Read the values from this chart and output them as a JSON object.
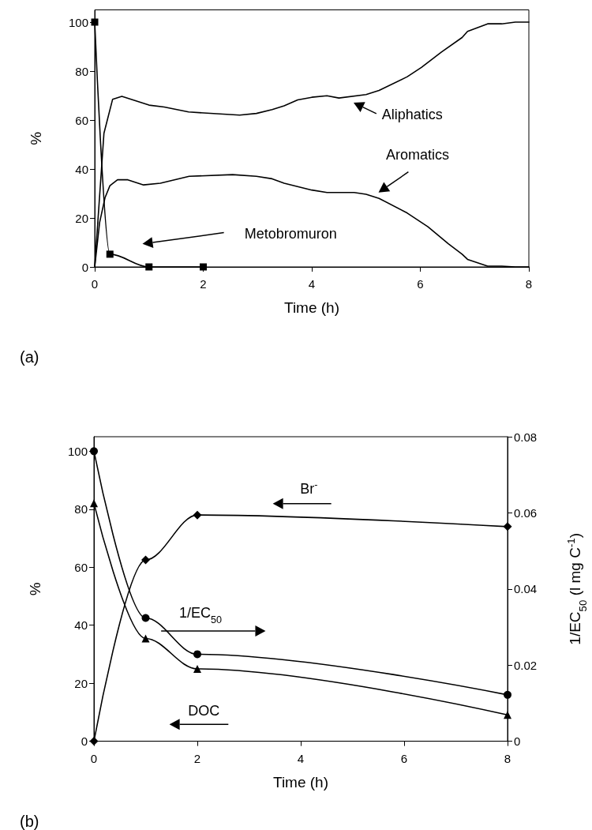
{
  "chart_data": [
    {
      "type": "line",
      "title": "(a)",
      "xlabel": "Time (h)",
      "ylabel": "%",
      "xlim": [
        0,
        8
      ],
      "xticks": [
        0,
        2,
        4,
        6,
        8
      ],
      "ylim": [
        0,
        105
      ],
      "yticks": [
        0,
        20,
        40,
        60,
        80,
        100
      ],
      "grid": false,
      "line_style": "solid",
      "annotations": [
        "Aliphatics",
        "Aromatics",
        "Metobromuron"
      ],
      "series": [
        {
          "color": "#000000",
          "marker": "none",
          "x": [
            0,
            0.17,
            0.33,
            0.5,
            1,
            1.28,
            1.73,
            2.67,
            2.98,
            3.27,
            3.49,
            3.74,
            4.0,
            4.28,
            4.5,
            5.0,
            5.24,
            5.76,
            6.02,
            6.39,
            6.77,
            6.87,
            7.24,
            7.5,
            7.75,
            8
          ],
          "values": [
            0,
            54.6,
            68.5,
            69.7,
            66.1,
            65.3,
            63.3,
            62.0,
            62.7,
            64.3,
            65.8,
            68.2,
            69.3,
            69.9,
            69.0,
            70.4,
            72.1,
            77.7,
            81.5,
            87.8,
            93.7,
            96.2,
            99.3,
            99.3,
            100,
            100
          ]
        },
        {
          "color": "#000000",
          "marker": "none",
          "x": [
            0,
            0.09,
            0.19,
            0.28,
            0.42,
            0.61,
            0.9,
            1.21,
            1.74,
            2.54,
            2.98,
            3.27,
            3.49,
            4.0,
            4.28,
            4.78,
            5.0,
            5.24,
            5.76,
            6.14,
            6.52,
            6.77,
            6.87,
            7.24,
            7.5,
            7.75,
            8
          ],
          "values": [
            0,
            18.1,
            28.3,
            33.2,
            35.6,
            35.6,
            33.5,
            34.2,
            37.0,
            37.7,
            37.0,
            36.0,
            34.2,
            31.4,
            30.4,
            30.4,
            29.7,
            28.0,
            22.0,
            16.4,
            9.4,
            5.2,
            3.1,
            0.3,
            0.3,
            0,
            0
          ]
        },
        {
          "color": "#000000",
          "marker": "square",
          "x": [
            0,
            0.28,
            1,
            2
          ],
          "values": [
            100,
            5.2,
            0,
            0
          ]
        }
      ]
    },
    {
      "type": "line",
      "title": "(b)",
      "xlabel": "Time (h)",
      "ylabel": "%",
      "y2label": "1/EC$_{50}$ (l mg C$^{-1}$)",
      "xlim": [
        0,
        8
      ],
      "xticks": [
        0,
        2,
        4,
        6,
        8
      ],
      "ylim": [
        0,
        105
      ],
      "yticks": [
        0,
        20,
        40,
        60,
        80,
        100
      ],
      "y2lim": [
        0,
        0.08
      ],
      "y2ticks": [
        0,
        0.02,
        0.04,
        0.06,
        0.08
      ],
      "grid": false,
      "line_style": "solid",
      "annotations": [
        "Br$^{-}$",
        "1/EC$_{50}$",
        "DOC"
      ],
      "series": [
        {
          "color": "#000000",
          "marker": "circle",
          "x": [
            0,
            1,
            2,
            8
          ],
          "values": [
            100,
            42.5,
            30,
            16
          ]
        },
        {
          "color": "#000000",
          "marker": "triangle",
          "axis": "y2",
          "x": [
            0,
            1,
            2,
            8
          ],
          "values": [
            0.0625,
            0.027,
            0.019,
            0.0069
          ]
        },
        {
          "color": "#000000",
          "marker": "diamond",
          "x": [
            0,
            1,
            2,
            8
          ],
          "values": [
            0,
            62.5,
            78,
            74
          ]
        }
      ]
    }
  ]
}
